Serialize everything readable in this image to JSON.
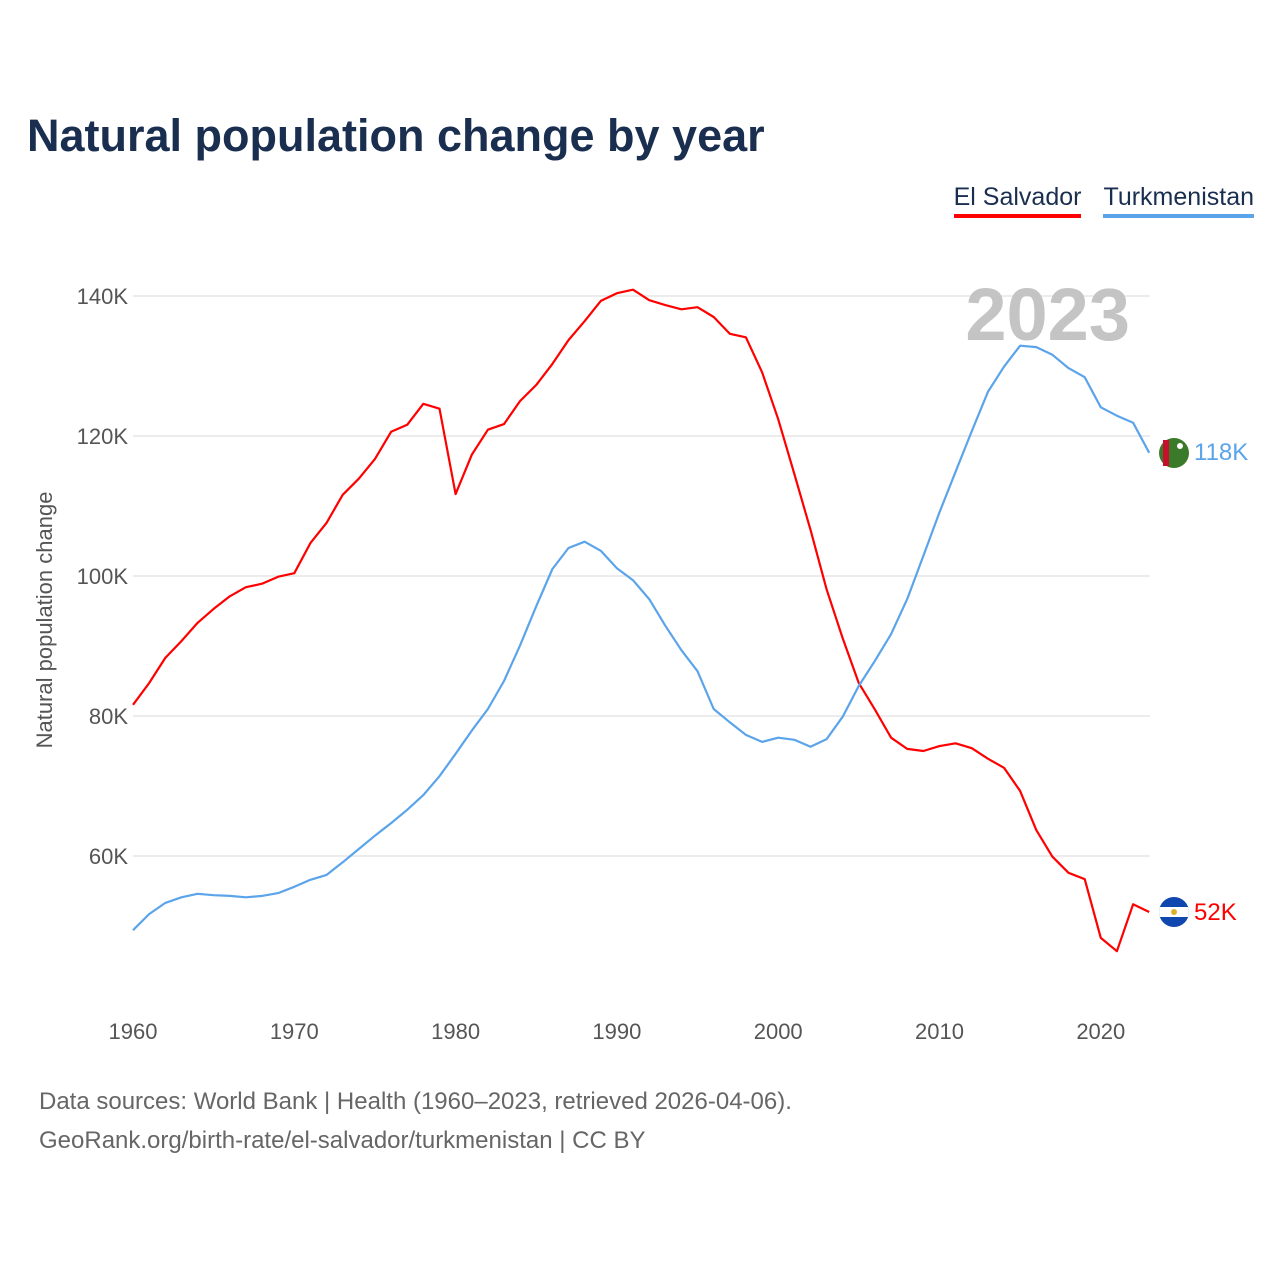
{
  "chart_data": {
    "type": "line",
    "title": "Natural population change by year",
    "xlabel": "",
    "ylabel": "Natural population change",
    "year_label": "2023",
    "xlim": [
      1960,
      2023
    ],
    "ylim": [
      40,
      150
    ],
    "grid": true,
    "legend_position": "top-right",
    "x_ticks": [
      1960,
      1970,
      1980,
      1990,
      2000,
      2010,
      2020
    ],
    "y_ticks": [
      {
        "v": 60,
        "label": "60K"
      },
      {
        "v": 80,
        "label": "80K"
      },
      {
        "v": 100,
        "label": "100K"
      },
      {
        "v": 120,
        "label": "120K"
      },
      {
        "v": 140,
        "label": "140K"
      }
    ],
    "x_start": 1960,
    "series": [
      {
        "name": "El Salvador",
        "color": "#ff0000",
        "end_label": "52K",
        "values": [
          81.6,
          84.7,
          88.3,
          90.7,
          93.3,
          95.3,
          97.1,
          98.4,
          98.9,
          99.9,
          100.4,
          104.7,
          107.6,
          111.6,
          113.9,
          116.7,
          120.6,
          121.6,
          124.6,
          123.9,
          111.7,
          117.3,
          120.9,
          121.7,
          125.0,
          127.3,
          130.3,
          133.7,
          136.4,
          139.3,
          140.4,
          140.9,
          139.4,
          138.7,
          138.1,
          138.4,
          137.0,
          134.6,
          134.1,
          129.1,
          122.4,
          114.6,
          106.6,
          98.1,
          91.1,
          84.7,
          80.9,
          76.9,
          75.3,
          75.0,
          75.7,
          76.1,
          75.4,
          73.9,
          72.6,
          69.3,
          63.7,
          59.9,
          57.6,
          56.7,
          48.3,
          46.4,
          53.1,
          52.0
        ]
      },
      {
        "name": "Turkmenistan",
        "color": "#5ba4ea",
        "end_label": "118K",
        "values": [
          49.4,
          51.7,
          53.3,
          54.1,
          54.6,
          54.4,
          54.3,
          54.1,
          54.3,
          54.7,
          55.6,
          56.6,
          57.3,
          59.1,
          61.0,
          62.9,
          64.7,
          66.6,
          68.7,
          71.4,
          74.6,
          77.9,
          81.0,
          85.0,
          90.1,
          95.7,
          101.0,
          104.0,
          104.9,
          103.6,
          101.1,
          99.4,
          96.7,
          92.9,
          89.4,
          86.4,
          81.0,
          79.1,
          77.3,
          76.3,
          76.9,
          76.6,
          75.6,
          76.7,
          79.9,
          84.3,
          87.9,
          91.7,
          96.7,
          102.9,
          109.1,
          114.9,
          120.7,
          126.3,
          129.9,
          132.9,
          132.7,
          131.6,
          129.7,
          128.4,
          124.1,
          122.9,
          121.9,
          117.6
        ]
      }
    ]
  },
  "footer": {
    "sources": "Data sources: World Bank | Health (1960–2023, retrieved 2026-04-06).",
    "link": "GeoRank.org/birth-rate/el-salvador/turkmenistan | CC BY"
  }
}
